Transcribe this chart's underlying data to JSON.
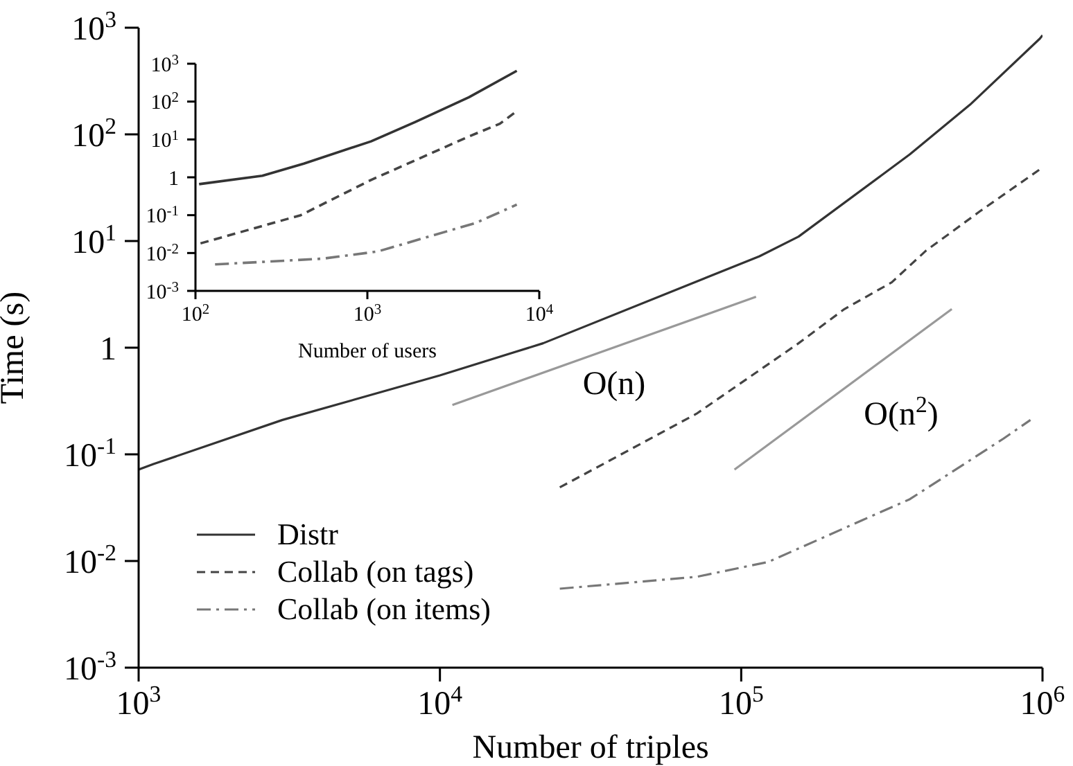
{
  "chart_data": [
    {
      "type": "line",
      "xlabel": "Number of triples",
      "ylabel": "Time (s)",
      "log": "xy",
      "marker": "none",
      "legend": "bottom left",
      "xlim": [
        1000,
        1000000
      ],
      "ylim": [
        0.001,
        1000
      ],
      "xticks": [
        {
          "value": 1000,
          "label": "10$^{3}$"
        },
        {
          "value": 10000,
          "label": "10$^{4}$"
        },
        {
          "value": 100000,
          "label": "10$^{5}$"
        },
        {
          "value": 1000000,
          "label": "10$^{6}$"
        }
      ],
      "yticks": [
        {
          "value": 0.001,
          "label": "10$^{-3}$"
        },
        {
          "value": 0.01,
          "label": "10$^{-2}$"
        },
        {
          "value": 0.1,
          "label": "10$^{-1}$"
        },
        1,
        {
          "value": 10,
          "label": "10$^{1}$"
        },
        {
          "value": 100,
          "label": "10$^{2}$"
        },
        {
          "value": 1000,
          "label": "10$^{3}$"
        }
      ],
      "series": [
        {
          "name": "Distr",
          "color": "#333333",
          "line_style": "solid",
          "x": [
            1000,
            1120,
            3000,
            10000,
            22000,
            115000,
            155000,
            363000,
            575000,
            980000,
            1000000
          ],
          "values": [
            0.072,
            0.081,
            0.21,
            0.55,
            1.1,
            7.2,
            11,
            65,
            190,
            790,
            850
          ]
        },
        {
          "name": "Collab (on tags)",
          "color": "#444444",
          "line_style": "dashed",
          "x": [
            25000,
            71000,
            155000,
            220000,
            316000,
            410000,
            620000,
            980000
          ],
          "values": [
            0.049,
            0.24,
            1.1,
            2.3,
            4.1,
            8.1,
            19,
            47
          ]
        },
        {
          "name": "Collab (on items)",
          "color": "#777777",
          "line_style": "dashdot",
          "x": [
            25000,
            71000,
            123000,
            251000,
            363000,
            741000,
            912000
          ],
          "values": [
            0.0055,
            0.0071,
            0.0098,
            0.024,
            0.038,
            0.14,
            0.21
          ]
        },
        {
          "color": "#999999",
          "line_style": "solid",
          "x": [
            11000,
            112000
          ],
          "values": [
            0.29,
            3.0
          ]
        },
        {
          "color": "#999999",
          "line_style": "solid",
          "x": [
            95000,
            500000
          ],
          "values": [
            0.072,
            2.3
          ]
        }
      ],
      "annotations": [
        "O(n)",
        "O(n$^{2}$)"
      ]
    },
    {
      "type": "line",
      "xlabel": "Number of users",
      "log": "xy",
      "marker": "none",
      "xlim": [
        100,
        10000
      ],
      "ylim": [
        0.001,
        1000
      ],
      "xticks": [
        {
          "value": 100,
          "label": "10$^{2}$"
        },
        {
          "value": 1000,
          "label": "10$^{3}$"
        },
        {
          "value": 10000,
          "label": "10$^{4}$"
        }
      ],
      "yticks": [
        {
          "value": 0.001,
          "label": "10$^{-3}$"
        },
        {
          "value": 0.01,
          "label": "10$^{-2}$"
        },
        {
          "value": 0.1,
          "label": "10$^{-1}$"
        },
        1,
        {
          "value": 10,
          "label": "10$^{1}$"
        },
        {
          "value": 100,
          "label": "10$^{2}$"
        },
        {
          "value": 1000,
          "label": "10$^{3}$"
        }
      ],
      "series": [
        {
          "color": "#333333",
          "line_style": "solid",
          "x": [
            105,
            245,
            427,
            1050,
            1900,
            3900,
            7400
          ],
          "values": [
            0.66,
            1.1,
            2.3,
            8.9,
            29,
            130,
            650
          ]
        },
        {
          "color": "#444444",
          "line_style": "dashed",
          "x": [
            107,
            410,
            1050,
            3900,
            5900,
            7400
          ],
          "values": [
            0.018,
            0.1,
            0.85,
            12,
            26,
            56
          ]
        },
        {
          "color": "#777777",
          "line_style": "dashdot",
          "x": [
            130,
            550,
            1150,
            4300,
            7400
          ],
          "values": [
            0.005,
            0.0071,
            0.011,
            0.063,
            0.19
          ]
        }
      ]
    }
  ]
}
